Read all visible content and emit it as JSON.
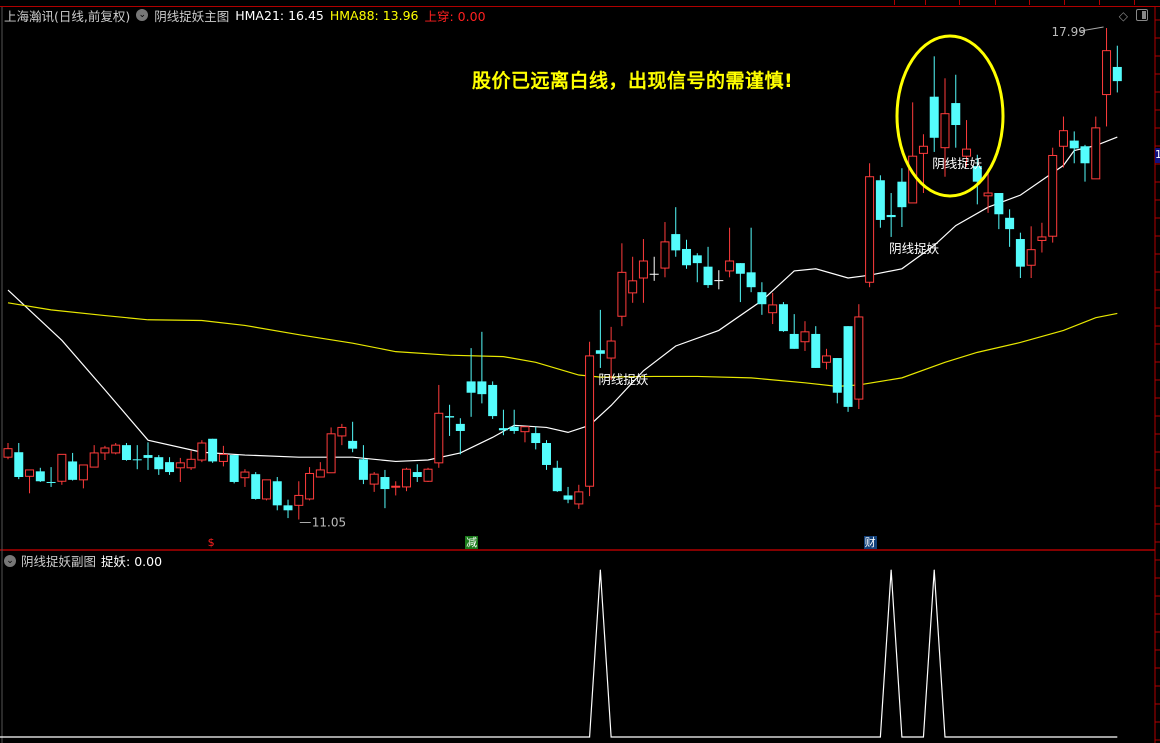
{
  "header": {
    "stock_name": "上海瀚讯(日线,前复权)",
    "indicator_name": "阴线捉妖主图",
    "hma21_label": "HMA21: 16.45",
    "hma88_label": "HMA88: 13.96",
    "cross_label": "上穿: 0.00"
  },
  "subchart": {
    "indicator_name": "阴线捉妖副图",
    "value_label": "捉妖: 0.00"
  },
  "annotation": {
    "headline": "股价已远离白线，出现信号的需谨慎!",
    "signal_label": "阴线捉妖",
    "high_label": "17.99",
    "low_label": "11.05",
    "axis_box_label": "1"
  },
  "event_markers": [
    {
      "label": "$",
      "index": 19,
      "color": "#ff2020",
      "bg": ""
    },
    {
      "label": "减",
      "index": 43,
      "color": "#ffffff",
      "bg": "#1a7a1a"
    },
    {
      "label": "财",
      "index": 80,
      "color": "#ffffff",
      "bg": "#12407a"
    }
  ],
  "colors": {
    "up": "#ff3c3c",
    "down": "#54fcfc",
    "flat": "#ffffff",
    "hma21": "#ffffff",
    "hma88": "#e8e800",
    "grid_red": "#b00000",
    "highlight_ellipse": "#ffff00"
  },
  "chart_data": {
    "type": "candlestick",
    "title": "",
    "fields": [
      "open",
      "high",
      "low",
      "close"
    ],
    "price_range_visible": [
      11.05,
      17.99
    ],
    "candles": [
      [
        11.93,
        12.13,
        11.9,
        12.05
      ],
      [
        12.0,
        12.13,
        11.62,
        11.65
      ],
      [
        11.66,
        11.75,
        11.42,
        11.75
      ],
      [
        11.73,
        11.78,
        11.58,
        11.59
      ],
      [
        11.58,
        11.79,
        11.51,
        11.57
      ],
      [
        11.59,
        11.97,
        11.54,
        11.97
      ],
      [
        11.87,
        11.99,
        11.6,
        11.61
      ],
      [
        11.61,
        11.82,
        11.49,
        11.82
      ],
      [
        11.79,
        12.1,
        11.79,
        11.99
      ],
      [
        11.99,
        12.09,
        11.89,
        12.06
      ],
      [
        11.99,
        12.13,
        11.97,
        12.1
      ],
      [
        12.1,
        12.13,
        11.88,
        11.89
      ],
      [
        11.9,
        12.1,
        11.76,
        11.89
      ],
      [
        11.96,
        12.14,
        11.75,
        11.92
      ],
      [
        11.93,
        11.96,
        11.68,
        11.76
      ],
      [
        11.86,
        11.93,
        11.68,
        11.72
      ],
      [
        11.78,
        11.92,
        11.58,
        11.85
      ],
      [
        11.78,
        12.02,
        11.75,
        11.9
      ],
      [
        11.89,
        12.17,
        11.86,
        12.13
      ],
      [
        12.19,
        12.19,
        11.85,
        11.87
      ],
      [
        11.87,
        12.09,
        11.8,
        11.97
      ],
      [
        11.96,
        11.96,
        11.56,
        11.58
      ],
      [
        11.64,
        11.76,
        11.51,
        11.72
      ],
      [
        11.69,
        11.72,
        11.33,
        11.34
      ],
      [
        11.34,
        11.61,
        11.32,
        11.61
      ],
      [
        11.59,
        11.65,
        11.18,
        11.25
      ],
      [
        11.25,
        11.33,
        11.07,
        11.18
      ],
      [
        11.25,
        11.59,
        11.05,
        11.39
      ],
      [
        11.34,
        11.79,
        11.32,
        11.7
      ],
      [
        11.65,
        11.86,
        11.65,
        11.75
      ],
      [
        11.71,
        12.35,
        11.71,
        12.26
      ],
      [
        12.23,
        12.4,
        12.1,
        12.35
      ],
      [
        12.16,
        12.43,
        12.0,
        12.05
      ],
      [
        11.9,
        12.1,
        11.55,
        11.61
      ],
      [
        11.55,
        11.72,
        11.44,
        11.69
      ],
      [
        11.65,
        11.75,
        11.21,
        11.48
      ],
      [
        11.51,
        11.59,
        11.39,
        11.52
      ],
      [
        11.51,
        11.78,
        11.45,
        11.76
      ],
      [
        11.72,
        11.83,
        11.58,
        11.65
      ],
      [
        11.59,
        11.78,
        11.58,
        11.76
      ],
      [
        11.85,
        12.95,
        11.78,
        12.55
      ],
      [
        12.51,
        12.67,
        12.23,
        12.49
      ],
      [
        12.4,
        12.48,
        11.97,
        12.3
      ],
      [
        13.0,
        13.47,
        12.5,
        12.84
      ],
      [
        13.0,
        13.7,
        12.69,
        12.82
      ],
      [
        12.95,
        13.0,
        12.47,
        12.51
      ],
      [
        12.34,
        12.6,
        12.24,
        12.31
      ],
      [
        12.36,
        12.6,
        12.26,
        12.3
      ],
      [
        12.29,
        12.36,
        12.14,
        12.36
      ],
      [
        12.27,
        12.36,
        12.04,
        12.13
      ],
      [
        12.13,
        12.17,
        11.75,
        11.82
      ],
      [
        11.78,
        11.88,
        11.44,
        11.45
      ],
      [
        11.39,
        11.51,
        11.28,
        11.33
      ],
      [
        11.27,
        11.54,
        11.2,
        11.44
      ],
      [
        11.52,
        13.56,
        11.38,
        13.36
      ],
      [
        13.44,
        14.01,
        13.19,
        13.39
      ],
      [
        13.33,
        13.77,
        13.02,
        13.57
      ],
      [
        13.92,
        14.95,
        13.78,
        14.54
      ],
      [
        14.25,
        14.76,
        14.11,
        14.42
      ],
      [
        14.46,
        15.01,
        14.11,
        14.7
      ],
      [
        14.52,
        14.76,
        14.42,
        14.52
      ],
      [
        14.6,
        15.25,
        14.47,
        14.97
      ],
      [
        15.08,
        15.46,
        14.76,
        14.85
      ],
      [
        14.87,
        15.0,
        14.59,
        14.64
      ],
      [
        14.78,
        14.81,
        14.4,
        14.67
      ],
      [
        14.62,
        14.9,
        14.32,
        14.36
      ],
      [
        14.43,
        14.57,
        14.3,
        14.43
      ],
      [
        14.56,
        15.17,
        14.47,
        14.7
      ],
      [
        14.67,
        14.67,
        14.12,
        14.52
      ],
      [
        14.54,
        15.17,
        14.26,
        14.33
      ],
      [
        14.26,
        14.4,
        13.94,
        14.09
      ],
      [
        13.97,
        14.25,
        13.81,
        14.08
      ],
      [
        14.09,
        14.12,
        13.7,
        13.71
      ],
      [
        13.67,
        13.95,
        13.46,
        13.46
      ],
      [
        13.56,
        13.85,
        13.43,
        13.7
      ],
      [
        13.67,
        13.78,
        13.19,
        13.19
      ],
      [
        13.27,
        13.46,
        13.17,
        13.36
      ],
      [
        13.33,
        13.33,
        12.69,
        12.84
      ],
      [
        13.78,
        13.78,
        12.57,
        12.64
      ],
      [
        12.75,
        14.09,
        12.61,
        13.91
      ],
      [
        14.4,
        16.08,
        14.33,
        15.89
      ],
      [
        15.84,
        15.91,
        15.17,
        15.28
      ],
      [
        15.35,
        15.66,
        15.04,
        15.32
      ],
      [
        15.82,
        16.01,
        15.18,
        15.46
      ],
      [
        15.52,
        16.94,
        15.52,
        16.18
      ],
      [
        16.22,
        16.49,
        15.66,
        16.32
      ],
      [
        17.02,
        17.59,
        16.24,
        16.44
      ],
      [
        16.3,
        17.28,
        15.89,
        16.78
      ],
      [
        16.93,
        17.33,
        16.3,
        16.62
      ],
      [
        16.18,
        16.69,
        16.03,
        16.28
      ],
      [
        16.04,
        16.2,
        15.5,
        15.82
      ],
      [
        15.62,
        16.0,
        15.38,
        15.66
      ],
      [
        15.66,
        15.66,
        15.15,
        15.36
      ],
      [
        15.31,
        15.43,
        14.9,
        15.15
      ],
      [
        15.01,
        15.1,
        14.46,
        14.62
      ],
      [
        14.64,
        15.19,
        14.46,
        14.86
      ],
      [
        14.99,
        15.24,
        14.82,
        15.04
      ],
      [
        15.05,
        16.3,
        14.96,
        16.19
      ],
      [
        16.32,
        16.74,
        16.02,
        16.54
      ],
      [
        16.4,
        16.53,
        16.08,
        16.29
      ],
      [
        16.32,
        16.34,
        15.82,
        16.08
      ],
      [
        15.86,
        16.74,
        15.86,
        16.58
      ],
      [
        17.05,
        17.99,
        16.6,
        17.67
      ],
      [
        17.44,
        17.74,
        17.08,
        17.24
      ]
    ],
    "series": [
      {
        "name": "HMA21",
        "points": [
          [
            0,
            14.29
          ],
          [
            5,
            13.58
          ],
          [
            9,
            12.88
          ],
          [
            13,
            12.17
          ],
          [
            18,
            12.0
          ],
          [
            22,
            11.96
          ],
          [
            27,
            11.93
          ],
          [
            32,
            11.93
          ],
          [
            36,
            11.87
          ],
          [
            39,
            11.89
          ],
          [
            42,
            11.99
          ],
          [
            45,
            12.21
          ],
          [
            47,
            12.38
          ],
          [
            50,
            12.35
          ],
          [
            52,
            12.28
          ],
          [
            54,
            12.38
          ],
          [
            56,
            12.66
          ],
          [
            59,
            13.15
          ],
          [
            62,
            13.5
          ],
          [
            66,
            13.72
          ],
          [
            70,
            14.14
          ],
          [
            73,
            14.56
          ],
          [
            75,
            14.59
          ],
          [
            78,
            14.46
          ],
          [
            80,
            14.5
          ],
          [
            83,
            14.59
          ],
          [
            86,
            14.92
          ],
          [
            88,
            15.2
          ],
          [
            91,
            15.46
          ],
          [
            94,
            15.63
          ],
          [
            96,
            15.84
          ],
          [
            98,
            16.05
          ],
          [
            99,
            16.26
          ],
          [
            101,
            16.33
          ],
          [
            103,
            16.45
          ]
        ]
      },
      {
        "name": "HMA88",
        "points": [
          [
            0,
            14.11
          ],
          [
            4,
            14.01
          ],
          [
            9,
            13.93
          ],
          [
            13,
            13.87
          ],
          [
            18,
            13.86
          ],
          [
            22,
            13.79
          ],
          [
            27,
            13.66
          ],
          [
            32,
            13.54
          ],
          [
            36,
            13.42
          ],
          [
            41,
            13.37
          ],
          [
            46,
            13.35
          ],
          [
            49,
            13.27
          ],
          [
            53,
            13.09
          ],
          [
            55,
            13.06
          ],
          [
            60,
            13.07
          ],
          [
            64,
            13.07
          ],
          [
            69,
            13.05
          ],
          [
            74,
            12.98
          ],
          [
            77,
            12.93
          ],
          [
            79,
            12.95
          ],
          [
            83,
            13.05
          ],
          [
            87,
            13.27
          ],
          [
            90,
            13.41
          ],
          [
            94,
            13.55
          ],
          [
            98,
            13.72
          ],
          [
            101,
            13.9
          ],
          [
            103,
            13.96
          ]
        ]
      }
    ],
    "signals": {
      "name": "捉妖",
      "indices": [
        55,
        82,
        86
      ],
      "value": 1,
      "ylim": [
        0,
        1
      ]
    },
    "high": {
      "index": 102,
      "value": 17.99
    },
    "low": {
      "index": 27,
      "value": 11.05
    }
  }
}
